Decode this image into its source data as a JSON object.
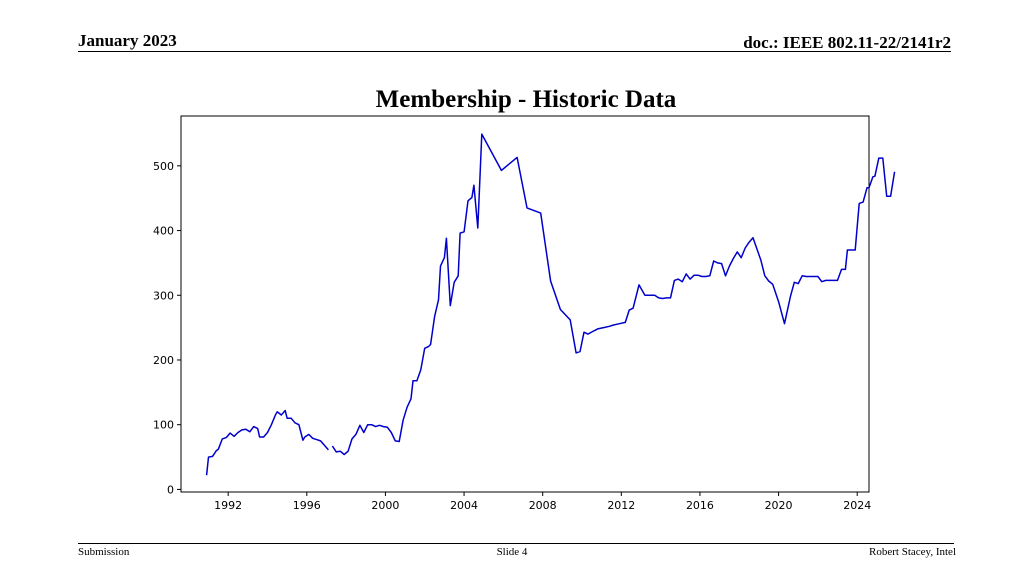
{
  "header": {
    "date": "January 2023",
    "doc": "doc.: IEEE 802.11-22/2141r2"
  },
  "title": "Membership - Historic Data",
  "footer": {
    "left": "Submission",
    "center": "Slide 4",
    "right": "Robert Stacey, Intel"
  },
  "colors": {
    "line": "#0000cc",
    "axes": "#000000"
  },
  "chart_data": {
    "type": "line",
    "title": "Membership - Historic Data",
    "xlabel": "",
    "ylabel": "",
    "xlim": [
      1989.6,
      2024.6
    ],
    "ylim": [
      -4,
      577
    ],
    "xticks": [
      1992,
      1996,
      2000,
      2004,
      2008,
      2012,
      2016,
      2020,
      2024
    ],
    "yticks": [
      0,
      100,
      200,
      300,
      400,
      500
    ],
    "grid": false,
    "legend": "none",
    "series": [
      {
        "segments": [
          [
            [
              1990.9,
              22
            ],
            [
              1991.0,
              50
            ],
            [
              1991.2,
              51
            ],
            [
              1991.4,
              60
            ],
            [
              1991.5,
              62
            ],
            [
              1991.7,
              78
            ],
            [
              1991.9,
              80
            ],
            [
              1992.1,
              87
            ],
            [
              1992.3,
              82
            ],
            [
              1992.5,
              88
            ],
            [
              1992.7,
              92
            ],
            [
              1992.9,
              93
            ],
            [
              1993.1,
              89
            ],
            [
              1993.3,
              97
            ],
            [
              1993.5,
              94
            ],
            [
              1993.6,
              81
            ],
            [
              1993.8,
              81
            ],
            [
              1994.0,
              88
            ],
            [
              1994.2,
              100
            ],
            [
              1994.4,
              115
            ],
            [
              1994.5,
              120
            ],
            [
              1994.7,
              115
            ],
            [
              1994.9,
              122
            ],
            [
              1995.0,
              110
            ],
            [
              1995.2,
              110
            ],
            [
              1995.4,
              103
            ],
            [
              1995.6,
              100
            ],
            [
              1995.8,
              76
            ],
            [
              1995.9,
              81
            ],
            [
              1996.1,
              85
            ],
            [
              1996.3,
              79
            ],
            [
              1996.5,
              77
            ],
            [
              1996.7,
              75
            ],
            [
              1996.9,
              68
            ],
            [
              1997.1,
              61
            ]
          ],
          [
            [
              1997.3,
              67
            ],
            [
              1997.5,
              58
            ],
            [
              1997.7,
              59
            ],
            [
              1997.9,
              54
            ],
            [
              1998.1,
              59
            ],
            [
              1998.3,
              78
            ],
            [
              1998.5,
              85
            ],
            [
              1998.7,
              99
            ],
            [
              1998.9,
              88
            ],
            [
              1999.1,
              100
            ],
            [
              1999.3,
              100
            ],
            [
              1999.5,
              97
            ],
            [
              1999.7,
              99
            ],
            [
              1999.9,
              97
            ],
            [
              2000.1,
              96
            ],
            [
              2000.3,
              88
            ],
            [
              2000.5,
              75
            ],
            [
              2000.7,
              74
            ],
            [
              2000.9,
              107
            ],
            [
              2001.1,
              127
            ],
            [
              2001.3,
              140
            ],
            [
              2001.4,
              168
            ],
            [
              2001.6,
              168
            ],
            [
              2001.8,
              185
            ],
            [
              2002.0,
              218
            ],
            [
              2002.2,
              221
            ],
            [
              2002.3,
              224
            ],
            [
              2002.5,
              267
            ],
            [
              2002.7,
              293
            ],
            [
              2002.8,
              345
            ],
            [
              2003.0,
              358
            ],
            [
              2003.1,
              388
            ],
            [
              2003.3,
              284
            ],
            [
              2003.5,
              320
            ],
            [
              2003.7,
              330
            ],
            [
              2003.8,
              396
            ],
            [
              2004.0,
              398
            ],
            [
              2004.2,
              446
            ],
            [
              2004.4,
              451
            ],
            [
              2004.5,
              470
            ],
            [
              2004.7,
              404
            ],
            [
              2004.9,
              549
            ],
            [
              2005.9,
              493
            ],
            [
              2006.7,
              513
            ],
            [
              2007.2,
              435
            ],
            [
              2007.9,
              427
            ],
            [
              2008.4,
              322
            ],
            [
              2008.9,
              278
            ],
            [
              2009.4,
              262
            ],
            [
              2009.7,
              211
            ],
            [
              2009.9,
              213
            ],
            [
              2010.1,
              243
            ],
            [
              2010.3,
              240
            ],
            [
              2010.6,
              245
            ],
            [
              2010.8,
              248
            ],
            [
              2011.1,
              250
            ],
            [
              2011.4,
              252
            ],
            [
              2011.6,
              254
            ],
            [
              2011.9,
              256
            ],
            [
              2012.2,
              258
            ],
            [
              2012.4,
              277
            ],
            [
              2012.6,
              280
            ],
            [
              2012.9,
              316
            ],
            [
              2013.2,
              300
            ],
            [
              2013.5,
              300
            ],
            [
              2013.7,
              300
            ],
            [
              2013.9,
              296
            ],
            [
              2014.1,
              295
            ],
            [
              2014.3,
              296
            ],
            [
              2014.5,
              296
            ],
            [
              2014.7,
              323
            ],
            [
              2014.9,
              325
            ],
            [
              2015.1,
              321
            ],
            [
              2015.3,
              333
            ],
            [
              2015.5,
              325
            ],
            [
              2015.7,
              331
            ],
            [
              2015.9,
              331
            ],
            [
              2016.1,
              329
            ],
            [
              2016.3,
              329
            ],
            [
              2016.5,
              330
            ],
            [
              2016.7,
              353
            ],
            [
              2016.9,
              350
            ],
            [
              2017.1,
              349
            ],
            [
              2017.3,
              330
            ],
            [
              2017.5,
              345
            ],
            [
              2017.7,
              357
            ],
            [
              2017.9,
              367
            ],
            [
              2018.1,
              358
            ],
            [
              2018.3,
              373
            ],
            [
              2018.5,
              382
            ],
            [
              2018.7,
              389
            ],
            [
              2019.1,
              354
            ],
            [
              2019.3,
              330
            ],
            [
              2019.5,
              322
            ],
            [
              2019.7,
              317
            ],
            [
              2020.0,
              290
            ],
            [
              2020.3,
              256
            ],
            [
              2020.6,
              298
            ],
            [
              2020.8,
              320
            ],
            [
              2021.0,
              318
            ],
            [
              2021.2,
              330
            ],
            [
              2021.4,
              329
            ],
            [
              2021.6,
              329
            ],
            [
              2021.8,
              329
            ],
            [
              2022.0,
              329
            ],
            [
              2022.2,
              321
            ],
            [
              2022.4,
              323
            ],
            [
              2022.6,
              323
            ],
            [
              2022.8,
              323
            ],
            [
              2023.0,
              323
            ],
            [
              2023.2,
              340
            ],
            [
              2023.4,
              340
            ],
            [
              2023.5,
              370
            ],
            [
              2023.7,
              370
            ],
            [
              2023.9,
              370
            ],
            [
              2024.1,
              442
            ],
            [
              2024.3,
              444
            ],
            [
              2024.5,
              466
            ],
            [
              2024.6,
              466
            ],
            [
              2024.8,
              483
            ],
            [
              2024.9,
              484
            ],
            [
              2025.1,
              512
            ],
            [
              2025.3,
              512
            ],
            [
              2025.5,
              453
            ],
            [
              2025.7,
              453
            ],
            [
              2025.9,
              491
            ]
          ]
        ]
      }
    ]
  }
}
